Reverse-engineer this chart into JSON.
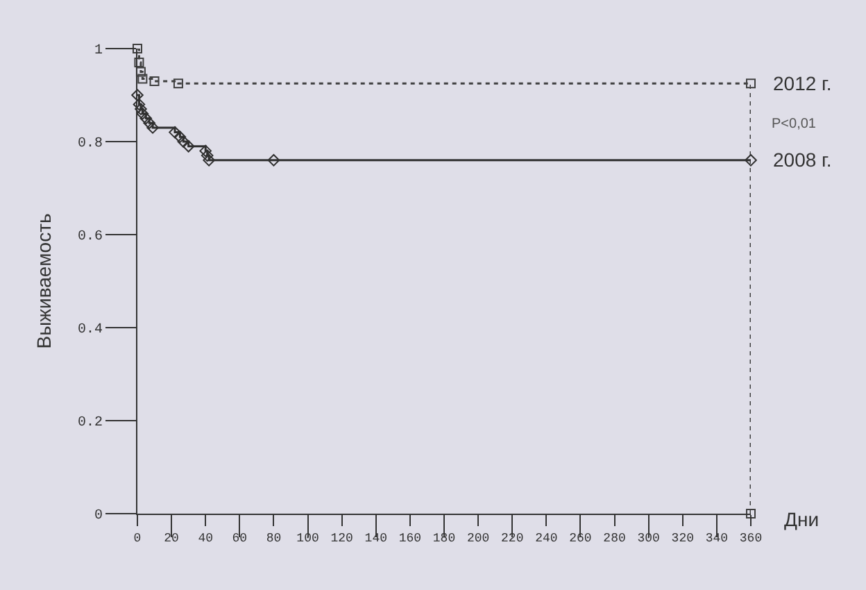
{
  "chart_data": {
    "type": "step",
    "ylabel": "Выживаемость",
    "xlabel": "Дни",
    "annotations": [
      "P<0,01"
    ],
    "xlim": [
      0,
      360
    ],
    "ylim": [
      0,
      1
    ],
    "xticks": [
      0,
      20,
      40,
      60,
      80,
      100,
      120,
      140,
      160,
      180,
      200,
      220,
      240,
      260,
      280,
      300,
      320,
      340,
      360
    ],
    "yticks": [
      0,
      0.2,
      0.4,
      0.6,
      0.8,
      1
    ],
    "grid": false,
    "legend": false,
    "series": [
      {
        "name": "2012 г.",
        "color": "#404040",
        "marker": "square",
        "line_style": "dotted",
        "x": [
          0,
          1,
          2,
          3,
          10,
          24,
          360,
          360
        ],
        "values": [
          1,
          0.97,
          0.95,
          0.935,
          0.93,
          0.925,
          0.925,
          0
        ]
      },
      {
        "name": "2008 г.",
        "color": "#303030",
        "marker": "diamond",
        "line_style": "solid",
        "x": [
          0,
          1,
          2,
          3,
          5,
          7,
          9,
          22,
          25,
          27,
          30,
          40,
          41,
          42,
          80,
          360
        ],
        "values": [
          0.9,
          0.88,
          0.87,
          0.86,
          0.85,
          0.84,
          0.83,
          0.82,
          0.81,
          0.8,
          0.79,
          0.78,
          0.77,
          0.76,
          0.76,
          0.76
        ]
      }
    ]
  }
}
